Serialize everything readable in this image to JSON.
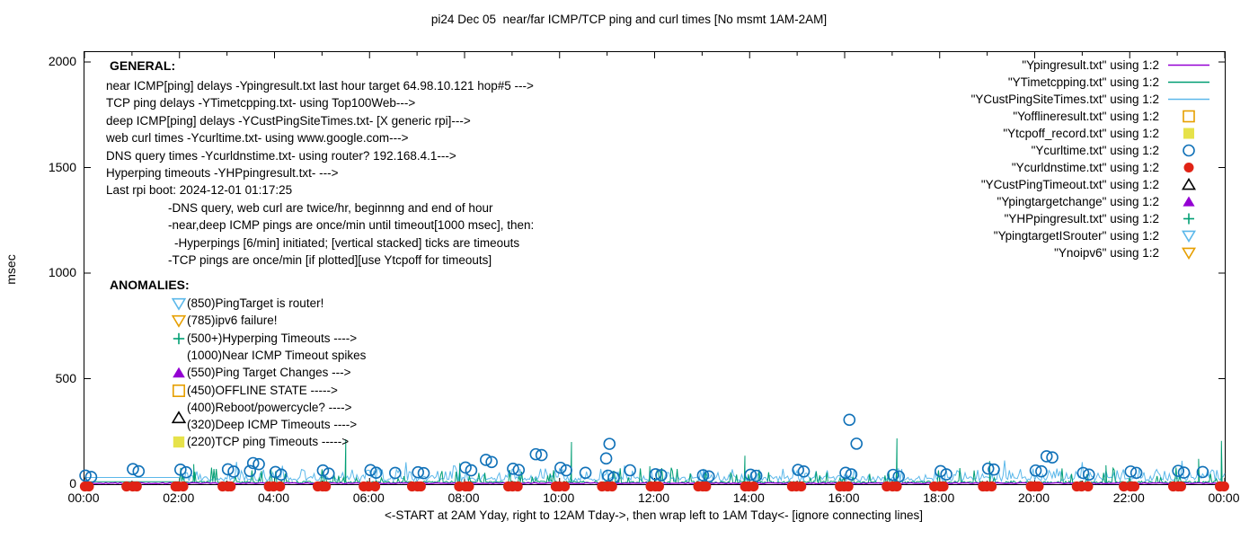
{
  "title": "pi24 Dec 05  near/far ICMP/TCP ping and curl times [No msmt 1AM-2AM]",
  "y_axis": {
    "label": "msec",
    "ticks": [
      0,
      500,
      1000,
      1500,
      2000
    ]
  },
  "x_axis": {
    "label": "<-START at 2AM Yday, right to 12AM Tday->, then wrap left to 1AM Tday<- [ignore connecting lines]",
    "tick_labels": [
      "00:00",
      "02:00",
      "04:00",
      "06:00",
      "08:00",
      "10:00",
      "12:00",
      "14:00",
      "16:00",
      "18:00",
      "20:00",
      "22:00",
      "00:00"
    ]
  },
  "general": {
    "heading": "GENERAL:",
    "lines": [
      {
        "text": "near ICMP[ping] delays -Ypingresult.txt last hour target 64.98.10.121 hop#5 --->",
        "indent": 0
      },
      {
        "text": "TCP ping delays -YTimetcpping.txt- using Top100Web--->",
        "indent": 0
      },
      {
        "text": "deep ICMP[ping] delays -YCustPingSiteTimes.txt- [X generic rpi]--->",
        "indent": 0
      },
      {
        "text": "web curl times -Ycurltime.txt- using www.google.com--->",
        "indent": 0
      },
      {
        "text": "DNS query times -Ycurldnstime.txt- using router? 192.168.4.1--->",
        "indent": 0
      },
      {
        "text": "Hyperping timeouts -YHPpingresult.txt- --->",
        "indent": 0
      },
      {
        "text": "Last rpi boot: 2024-12-01 01:17:25",
        "indent": 0
      },
      {
        "text": "-DNS query, web curl are twice/hr, beginnng and end of hour",
        "indent": 1
      },
      {
        "text": "-near,deep ICMP pings are once/min until timeout[1000 msec], then:",
        "indent": 1
      },
      {
        "text": "-Hyperpings [6/min] initiated; [vertical stacked] ticks are timeouts",
        "indent": 2
      },
      {
        "text": "-TCP pings are once/min [if plotted][use Ytcpoff for timeouts]",
        "indent": 1
      }
    ]
  },
  "anomalies": {
    "heading": "ANOMALIES:",
    "items": [
      {
        "marker": "triangle-down-open",
        "color": "#5cb8ea",
        "text": "(850)PingTarget is router!"
      },
      {
        "marker": "triangle-down-open",
        "color": "#e69f00",
        "text": "(785)ipv6 failure!"
      },
      {
        "marker": "plus",
        "color": "#009e73",
        "text": "(500+)Hyperping Timeouts ---->"
      },
      {
        "marker": null,
        "color": null,
        "text": "(1000)Near ICMP Timeout spikes"
      },
      {
        "marker": "triangle-up-filled",
        "color": "#9400d3",
        "text": "(550)Ping Target Changes --->"
      },
      {
        "marker": "square-open",
        "color": "#e69f00",
        "text": "(450)OFFLINE STATE ----->"
      },
      {
        "marker": null,
        "color": null,
        "text": "(400)Reboot/powercycle? ---->"
      },
      {
        "marker": "triangle-up-open",
        "color": "#000000",
        "text": "(320)Deep ICMP Timeouts ---->",
        "marker_dy": -8
      },
      {
        "marker": "square-filled",
        "color": "#e6e24a",
        "text": "(220)TCP ping Timeouts ----->"
      }
    ]
  },
  "legend": [
    {
      "label": "\"Ypingresult.txt\" using 1:2",
      "sample": "line",
      "color": "#9400d3"
    },
    {
      "label": "\"YTimetcpping.txt\" using 1:2",
      "sample": "line",
      "color": "#009e73"
    },
    {
      "label": "\"YCustPingSiteTimes.txt\" using 1:2",
      "sample": "line",
      "color": "#5cb8ea"
    },
    {
      "label": "\"Yofflineresult.txt\" using 1:2",
      "sample": "square-open",
      "color": "#e69f00"
    },
    {
      "label": "\"Ytcpoff_record.txt\" using 1:2",
      "sample": "square-filled",
      "color": "#e6e24a"
    },
    {
      "label": "\"Ycurltime.txt\" using 1:2",
      "sample": "circle-open",
      "color": "#1071b8"
    },
    {
      "label": "\"Ycurldnstime.txt\" using 1:2",
      "sample": "circle-filled",
      "color": "#e02315"
    },
    {
      "label": "\"YCustPingTimeout.txt\" using 1:2",
      "sample": "triangle-up-open",
      "color": "#000000"
    },
    {
      "label": "\"Ypingtargetchange\" using 1:2",
      "sample": "triangle-up-filled",
      "color": "#9400d3"
    },
    {
      "label": "\"YHPpingresult.txt\" using 1:2",
      "sample": "plus",
      "color": "#009e73"
    },
    {
      "label": "\"YpingtargetISrouter\" using 1:2",
      "sample": "triangle-down-open",
      "color": "#5cb8ea"
    },
    {
      "label": "\"Ynoipv6\" using 1:2",
      "sample": "triangle-down-open",
      "color": "#e69f00"
    }
  ],
  "chart_data": {
    "type": "line",
    "title": "pi24 Dec 05  near/far ICMP/TCP ping and curl times [No msmt 1AM-2AM]",
    "xlabel": "<-START at 2AM Yday, right to 12AM Tday->, then wrap left to 1AM Tday<- [ignore connecting lines]",
    "ylabel": "msec",
    "xlim_hours": [
      0,
      24
    ],
    "ylim": [
      0,
      2045
    ],
    "grid": false,
    "legend_position": "top-right",
    "seed": 42,
    "series": [
      {
        "name": "Ypingresult.txt",
        "style": "line",
        "color": "#9400d3",
        "summary": "near ICMP ping delay; flat baseline hugging zero all day",
        "baseline_msec": [
          2,
          7
        ]
      },
      {
        "name": "YTimetcpping.txt",
        "style": "line",
        "color": "#009e73",
        "summary": "TCP ping delay; baseline 5-15 msec, frequent spikes 30-90 msec",
        "baseline_msec": [
          4,
          15
        ],
        "flat_connector": {
          "hours": [
            0,
            2
          ],
          "msec": 12
        },
        "notable_spikes_hour_msec": [
          [
            2.3,
            95
          ],
          [
            5.5,
            213
          ],
          [
            7.9,
            100
          ],
          [
            10.25,
            200
          ],
          [
            11.9,
            85
          ],
          [
            13.9,
            135
          ],
          [
            17.1,
            217
          ],
          [
            19.05,
            110
          ],
          [
            21.5,
            90
          ],
          [
            23.45,
            120
          ],
          [
            23.93,
            205
          ]
        ]
      },
      {
        "name": "YCustPingSiteTimes.txt",
        "style": "line",
        "color": "#5cb8ea",
        "summary": "deep ICMP ping delay; noisy band 15-75 msec with bumps to ~110 msec",
        "noise_band_msec": [
          14,
          75
        ],
        "flat_connector": {
          "hours": [
            0,
            2
          ],
          "msec": 32
        }
      },
      {
        "name": "Yofflineresult.txt",
        "style": "points",
        "marker": "square-open",
        "color": "#e69f00",
        "points": []
      },
      {
        "name": "Ytcpoff_record.txt",
        "style": "points",
        "marker": "square-filled",
        "color": "#e6e24a",
        "points": []
      },
      {
        "name": "Ycurltime.txt",
        "style": "points",
        "marker": "circle-open",
        "color": "#1071b8",
        "summary": "web curl times; pairs of points near every hour, mostly 40-85 msec",
        "typical_msec": [
          40,
          85
        ],
        "outliers_hour_msec": [
          [
            3.55,
            100
          ],
          [
            3.67,
            95
          ],
          [
            8.45,
            115
          ],
          [
            8.57,
            105
          ],
          [
            9.5,
            142
          ],
          [
            9.62,
            138
          ],
          [
            10.98,
            122
          ],
          [
            11.05,
            191
          ],
          [
            16.1,
            305
          ],
          [
            16.25,
            192
          ],
          [
            20.25,
            132
          ],
          [
            20.37,
            127
          ]
        ]
      },
      {
        "name": "Ycurldnstime.txt",
        "style": "points",
        "marker": "circle-filled",
        "color": "#e02315",
        "summary": "DNS query times ~0 msec; overlapping clusters at every hour mark",
        "value_msec": 0
      },
      {
        "name": "YCustPingTimeout.txt",
        "style": "points",
        "marker": "triangle-up-open",
        "color": "#000000",
        "points": []
      },
      {
        "name": "Ypingtargetchange",
        "style": "points",
        "marker": "triangle-up-filled",
        "color": "#9400d3",
        "points": []
      },
      {
        "name": "YHPpingresult.txt",
        "style": "points",
        "marker": "plus",
        "color": "#009e73",
        "points": []
      },
      {
        "name": "YpingtargetISrouter",
        "style": "points",
        "marker": "triangle-down-open",
        "color": "#5cb8ea",
        "points": []
      },
      {
        "name": "Ynoipv6",
        "style": "points",
        "marker": "triangle-down-open",
        "color": "#e69f00",
        "points": []
      }
    ]
  }
}
